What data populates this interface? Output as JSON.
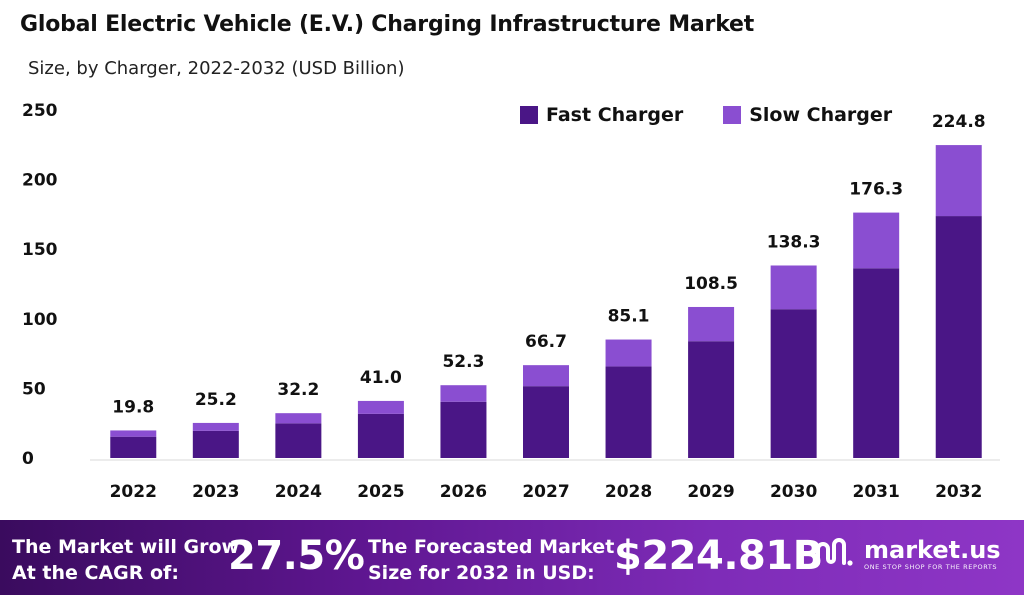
{
  "header": {
    "title": "Global Electric Vehicle (E.V.) Charging Infrastructure Market",
    "subtitle": "Size, by Charger, 2022-2032 (USD Billion)"
  },
  "legend": [
    {
      "label": "Fast Charger",
      "color": "#4a1686"
    },
    {
      "label": "Slow Charger",
      "color": "#8a4ed1"
    }
  ],
  "chart_data": {
    "type": "bar",
    "stacked": true,
    "categories": [
      "2022",
      "2023",
      "2024",
      "2025",
      "2026",
      "2027",
      "2028",
      "2029",
      "2030",
      "2031",
      "2032"
    ],
    "series": [
      {
        "name": "Fast Charger",
        "color": "#4a1686",
        "values": [
          15.3,
          19.5,
          24.9,
          31.7,
          40.4,
          51.6,
          65.8,
          83.9,
          106.9,
          136.3,
          173.8
        ]
      },
      {
        "name": "Slow Charger",
        "color": "#8a4ed1",
        "values": [
          4.5,
          5.7,
          7.3,
          9.3,
          11.9,
          15.1,
          19.3,
          24.6,
          31.4,
          40.0,
          51.0
        ]
      }
    ],
    "totals": [
      "19.8",
      "25.2",
      "32.2",
      "41.0",
      "52.3",
      "66.7",
      "85.1",
      "108.5",
      "138.3",
      "176.3",
      "224.8"
    ],
    "title": "Global Electric Vehicle (E.V.) Charging Infrastructure Market",
    "subtitle": "Size, by Charger, 2022-2032 (USD Billion)",
    "xlabel": "",
    "ylabel": "",
    "ylim": [
      0,
      250
    ],
    "yticks": [
      "0",
      "50",
      "100",
      "150",
      "200",
      "250"
    ],
    "grid": false,
    "legend_position": "top-right"
  },
  "footer": {
    "lead_line1": "The Market will Grow",
    "lead_line2": "At the CAGR of:",
    "cagr": "27.5%",
    "mid_line1": "The Forecasted Market",
    "mid_line2": "Size for 2032 in USD:",
    "value": "$224.81B",
    "brand_name": "market.us",
    "brand_tag": "ONE STOP SHOP FOR THE REPORTS"
  }
}
